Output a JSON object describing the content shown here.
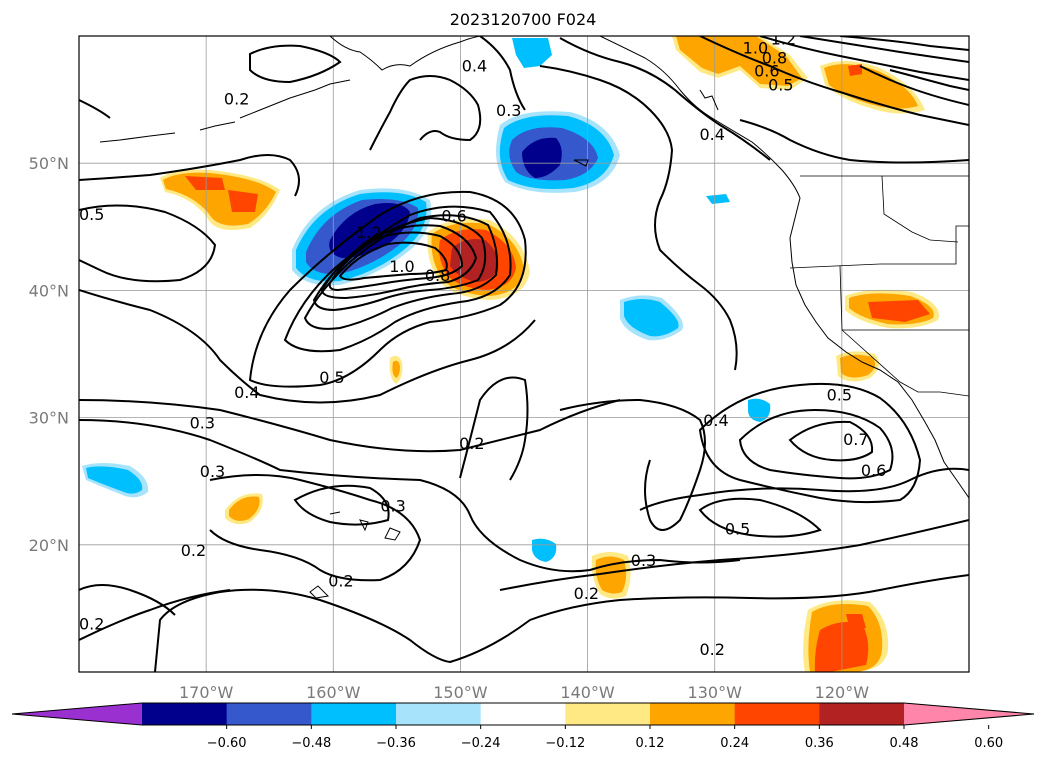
{
  "title": "2023120700 F024",
  "map": {
    "lat_labels": [
      "50°N",
      "40°N",
      "30°N",
      "20°N"
    ],
    "lon_labels": [
      "170°W",
      "160°W",
      "150°W",
      "140°W",
      "130°W",
      "120°W"
    ],
    "lat_values": [
      50,
      40,
      30,
      20
    ],
    "lon_values": [
      -170,
      -160,
      -150,
      -140,
      -130,
      -120
    ],
    "extent": {
      "lon_min": -180,
      "lon_max": -110,
      "lat_min": 10,
      "lat_max": 60
    },
    "grid": true
  },
  "contour_labels": [
    {
      "text": "0.4",
      "lon": -148.9,
      "lat": 57.7
    },
    {
      "text": "0.2",
      "lon": -167.6,
      "lat": 55.1
    },
    {
      "text": "0.3",
      "lon": -146.2,
      "lat": 54.2
    },
    {
      "text": "0.4",
      "lon": -130.2,
      "lat": 52.3
    },
    {
      "text": "1.0",
      "lon": -126.8,
      "lat": 59.1
    },
    {
      "text": "1.2",
      "lon": -124.6,
      "lat": 59.8
    },
    {
      "text": "0.8",
      "lon": -125.3,
      "lat": 58.3
    },
    {
      "text": "0.6",
      "lon": -125.9,
      "lat": 57.3
    },
    {
      "text": "0.5",
      "lon": -124.8,
      "lat": 56.2
    },
    {
      "text": "0.5",
      "lon": -179.0,
      "lat": 46.0
    },
    {
      "text": "0.6",
      "lon": -150.5,
      "lat": 45.9
    },
    {
      "text": "1.2",
      "lon": -157.2,
      "lat": 44.6
    },
    {
      "text": "1.0",
      "lon": -154.6,
      "lat": 41.9
    },
    {
      "text": "0.8",
      "lon": -151.8,
      "lat": 41.2
    },
    {
      "text": "0.5",
      "lon": -160.1,
      "lat": 33.2
    },
    {
      "text": "0.4",
      "lon": -166.8,
      "lat": 32.0
    },
    {
      "text": "0.3",
      "lon": -170.3,
      "lat": 29.6
    },
    {
      "text": "0.2",
      "lon": -149.1,
      "lat": 28.0
    },
    {
      "text": "0.4",
      "lon": -129.9,
      "lat": 29.8
    },
    {
      "text": "0.5",
      "lon": -120.2,
      "lat": 31.8
    },
    {
      "text": "0.7",
      "lon": -118.9,
      "lat": 28.3
    },
    {
      "text": "0.6",
      "lon": -117.5,
      "lat": 25.9
    },
    {
      "text": "0.3",
      "lon": -169.5,
      "lat": 25.8
    },
    {
      "text": "0.3",
      "lon": -155.3,
      "lat": 23.1
    },
    {
      "text": "0.5",
      "lon": -128.2,
      "lat": 21.3
    },
    {
      "text": "0.2",
      "lon": -171.0,
      "lat": 19.6
    },
    {
      "text": "0.2",
      "lon": -159.4,
      "lat": 17.2
    },
    {
      "text": "0.3",
      "lon": -135.6,
      "lat": 18.8
    },
    {
      "text": "0.2",
      "lon": -140.1,
      "lat": 16.2
    },
    {
      "text": "0.2",
      "lon": -179.0,
      "lat": 13.8
    },
    {
      "text": "0.2",
      "lon": -130.2,
      "lat": 11.8
    }
  ],
  "colorbar": {
    "ticks": [
      "−0.60",
      "−0.48",
      "−0.36",
      "−0.24",
      "−0.12",
      "0.12",
      "0.24",
      "0.36",
      "0.48",
      "0.60"
    ],
    "colors": [
      "#9b30d0",
      "#00008c",
      "#3558cc",
      "#00bfff",
      "#a7e3fb",
      "#ffffff",
      "#ffe985",
      "#ffa500",
      "#ff4500",
      "#b22222",
      "#ff85ab"
    ]
  }
}
